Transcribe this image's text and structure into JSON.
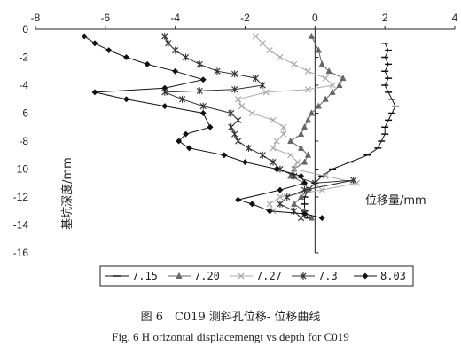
{
  "chart_data": {
    "type": "line",
    "xlabel": "位移量/mm",
    "ylabel": "基坑深度/mm",
    "xlim": [
      -8,
      4
    ],
    "ylim": [
      -16,
      0
    ],
    "xticks": [
      -8,
      -6,
      -4,
      -2,
      0,
      2,
      4
    ],
    "yticks": [
      0,
      -2,
      -4,
      -6,
      -8,
      -10,
      -12,
      -14,
      -16
    ],
    "legend_position": "bottom",
    "series": [
      {
        "name": "7.15",
        "marker": "dash",
        "color": "#111111",
        "points": [
          [
            2.0,
            -1.0
          ],
          [
            2.1,
            -1.5
          ],
          [
            2.0,
            -2.0
          ],
          [
            2.1,
            -2.5
          ],
          [
            2.0,
            -3.0
          ],
          [
            2.1,
            -3.5
          ],
          [
            2.0,
            -4.0
          ],
          [
            2.1,
            -4.5
          ],
          [
            2.2,
            -5.0
          ],
          [
            2.3,
            -5.5
          ],
          [
            2.2,
            -6.0
          ],
          [
            2.1,
            -6.5
          ],
          [
            2.0,
            -7.0
          ],
          [
            2.0,
            -7.5
          ],
          [
            1.9,
            -8.0
          ],
          [
            1.8,
            -8.5
          ],
          [
            1.5,
            -9.0
          ],
          [
            1.0,
            -9.5
          ],
          [
            0.5,
            -10.0
          ],
          [
            0.2,
            -10.5
          ],
          [
            0.0,
            -11.0
          ],
          [
            -0.2,
            -11.5
          ],
          [
            -0.3,
            -12.0
          ],
          [
            -0.3,
            -12.5
          ],
          [
            -0.3,
            -13.0
          ],
          [
            -0.2,
            -13.5
          ]
        ]
      },
      {
        "name": "7.20",
        "marker": "triangle",
        "color": "#666666",
        "points": [
          [
            -0.1,
            -0.5
          ],
          [
            0.1,
            -1.5
          ],
          [
            0.2,
            -2.5
          ],
          [
            0.4,
            -3.0
          ],
          [
            0.8,
            -3.5
          ],
          [
            0.7,
            -4.0
          ],
          [
            0.5,
            -4.5
          ],
          [
            0.3,
            -5.0
          ],
          [
            0.1,
            -5.5
          ],
          [
            -0.1,
            -6.0
          ],
          [
            -0.2,
            -6.5
          ],
          [
            -0.3,
            -7.0
          ],
          [
            -0.4,
            -7.5
          ],
          [
            -0.7,
            -8.0
          ],
          [
            -0.4,
            -8.5
          ],
          [
            -0.2,
            -9.0
          ],
          [
            -0.3,
            -9.5
          ],
          [
            -0.6,
            -10.0
          ],
          [
            -0.7,
            -10.5
          ],
          [
            -0.3,
            -11.0
          ],
          [
            -0.2,
            -11.5
          ],
          [
            -0.4,
            -12.0
          ],
          [
            -0.6,
            -12.5
          ],
          [
            -0.3,
            -13.0
          ],
          [
            -0.1,
            -13.5
          ]
        ]
      },
      {
        "name": "7.27",
        "marker": "x",
        "color": "#aaaaaa",
        "points": [
          [
            -1.7,
            -0.5
          ],
          [
            -1.5,
            -1.0
          ],
          [
            -1.3,
            -1.5
          ],
          [
            -1.0,
            -2.0
          ],
          [
            -0.6,
            -2.5
          ],
          [
            -0.2,
            -3.0
          ],
          [
            0.3,
            -3.5
          ],
          [
            0.5,
            -4.0
          ],
          [
            -0.2,
            -4.3
          ],
          [
            -1.4,
            -4.5
          ],
          [
            -2.2,
            -5.0
          ],
          [
            -2.1,
            -5.5
          ],
          [
            -1.8,
            -6.0
          ],
          [
            -1.2,
            -6.5
          ],
          [
            -0.9,
            -7.0
          ],
          [
            -0.9,
            -7.5
          ],
          [
            -1.1,
            -8.0
          ],
          [
            -1.2,
            -8.5
          ],
          [
            -0.7,
            -9.0
          ],
          [
            -0.5,
            -9.5
          ],
          [
            -0.6,
            -10.0
          ],
          [
            0.3,
            -10.5
          ],
          [
            1.2,
            -11.0
          ],
          [
            0.2,
            -11.5
          ],
          [
            -1.0,
            -12.0
          ],
          [
            -1.3,
            -12.5
          ],
          [
            -1.2,
            -13.0
          ]
        ]
      },
      {
        "name": "7.3",
        "marker": "star",
        "color": "#333333",
        "points": [
          [
            -4.3,
            -0.5
          ],
          [
            -4.2,
            -1.0
          ],
          [
            -4.0,
            -1.5
          ],
          [
            -3.7,
            -2.0
          ],
          [
            -3.3,
            -2.5
          ],
          [
            -2.8,
            -3.0
          ],
          [
            -2.3,
            -3.2
          ],
          [
            -1.7,
            -3.5
          ],
          [
            -1.5,
            -4.0
          ],
          [
            -2.3,
            -4.3
          ],
          [
            -3.3,
            -4.4
          ],
          [
            -4.3,
            -4.5
          ],
          [
            -3.8,
            -5.0
          ],
          [
            -3.2,
            -5.5
          ],
          [
            -2.4,
            -6.0
          ],
          [
            -2.2,
            -6.5
          ],
          [
            -2.4,
            -7.0
          ],
          [
            -2.3,
            -7.5
          ],
          [
            -2.2,
            -8.0
          ],
          [
            -1.9,
            -8.5
          ],
          [
            -1.5,
            -9.0
          ],
          [
            -1.2,
            -9.5
          ],
          [
            -1.0,
            -10.0
          ],
          [
            -0.6,
            -10.5
          ],
          [
            0.0,
            -11.0
          ],
          [
            1.1,
            -10.8
          ],
          [
            -0.3,
            -11.5
          ],
          [
            -0.8,
            -12.0
          ],
          [
            -1.0,
            -12.5
          ],
          [
            -0.6,
            -13.0
          ],
          [
            -0.4,
            -13.5
          ]
        ]
      },
      {
        "name": "8.03",
        "marker": "diamond",
        "color": "#111111",
        "points": [
          [
            -6.6,
            -0.5
          ],
          [
            -6.3,
            -1.0
          ],
          [
            -5.9,
            -1.5
          ],
          [
            -5.4,
            -2.0
          ],
          [
            -4.8,
            -2.5
          ],
          [
            -4.0,
            -3.0
          ],
          [
            -3.2,
            -3.6
          ],
          [
            -4.3,
            -4.2
          ],
          [
            -6.3,
            -4.5
          ],
          [
            -5.4,
            -5.0
          ],
          [
            -4.3,
            -5.5
          ],
          [
            -3.2,
            -6.0
          ],
          [
            -3.0,
            -7.0
          ],
          [
            -3.7,
            -7.5
          ],
          [
            -3.9,
            -8.0
          ],
          [
            -3.6,
            -8.5
          ],
          [
            -2.6,
            -9.0
          ],
          [
            -2.0,
            -9.5
          ],
          [
            -1.1,
            -10.0
          ],
          [
            -0.4,
            -10.5
          ],
          [
            -0.3,
            -11.0
          ],
          [
            -1.0,
            -11.5
          ],
          [
            -2.2,
            -12.2
          ],
          [
            -1.8,
            -12.5
          ],
          [
            -1.3,
            -13.0
          ],
          [
            -0.3,
            -13.2
          ],
          [
            0.2,
            -13.5
          ]
        ]
      }
    ]
  },
  "caption": {
    "chinese": "图 6　C019 测斜孔位移- 位移曲线",
    "english": "Fig. 6 H orizontal displacemengt vs depth for C019"
  }
}
